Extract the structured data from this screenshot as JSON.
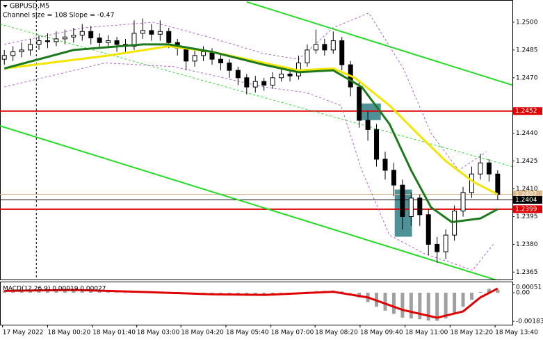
{
  "chart_data": {
    "type": "candlestick",
    "title": "GBPUSD,M5",
    "subtitle": "Channel size = 108 Slope = -0.47",
    "xlim": [
      -0.5,
      58.7
    ],
    "xticks": [
      {
        "value": -0.2,
        "label": "17 May 2022"
      },
      {
        "value": 5,
        "label": "18 May 00:20"
      },
      {
        "value": 10.2,
        "label": "18 May 01:40"
      },
      {
        "value": 15.3,
        "label": "18 May 03:00"
      },
      {
        "value": 20.4,
        "label": "18 May 04:20"
      },
      {
        "value": 25.6,
        "label": "18 May 05:40"
      },
      {
        "value": 30.8,
        "label": "18 May 07:00"
      },
      {
        "value": 35.9,
        "label": "18 May 08:20"
      },
      {
        "value": 41.1,
        "label": "18 May 09:40"
      },
      {
        "value": 46.3,
        "label": "18 May 11:00"
      },
      {
        "value": 51.5,
        "label": "18 May 12:20"
      },
      {
        "value": 56.7,
        "label": "18 May 13:40"
      }
    ],
    "ylim": [
      1.2361,
      1.2512
    ],
    "yticks": [
      {
        "value": 1.25,
        "label": "1.2500"
      },
      1.2485,
      {
        "value": 1.247,
        "label": "1.2470"
      },
      {
        "value": 1.244,
        "label": "1.2440"
      },
      1.2425,
      {
        "value": 1.241,
        "label": "1.2410"
      },
      1.2395,
      {
        "value": 1.238,
        "label": "1.2380"
      },
      1.2365
    ],
    "up_color": "#ffffff",
    "down_color": "#000000",
    "open": [
      1.248,
      1.2482,
      1.2484,
      1.2485,
      1.2488,
      1.249,
      1.24895,
      1.2491,
      1.2492,
      1.2493,
      1.2495,
      1.24915,
      1.2489,
      1.249,
      1.2488,
      1.2487,
      1.2494,
      1.24955,
      1.24935,
      1.2495,
      1.2489,
      1.2486,
      1.2479,
      1.2482,
      1.2484,
      1.248,
      1.2478,
      1.2474,
      1.247,
      1.2465,
      1.2468,
      1.2466,
      1.247,
      1.2472,
      1.2471,
      1.2478,
      1.2485,
      1.2488,
      1.2485,
      1.249,
      1.2477,
      1.2465,
      1.2447,
      1.2442,
      1.2426,
      1.242,
      1.2412,
      1.2395,
      1.2405,
      1.2396,
      1.238,
      1.2376,
      1.2385,
      1.2398,
      1.2408,
      1.2418,
      1.2424,
      1.2418
    ],
    "high": [
      1.2485,
      1.2487,
      1.2489,
      1.2491,
      1.2493,
      1.2494,
      1.2495,
      1.2496,
      1.2497,
      1.2499,
      1.2498,
      1.2494,
      1.2493,
      1.2492,
      1.2491,
      1.2501,
      1.2502,
      1.2499,
      1.2501,
      1.2497,
      1.2491,
      1.2487,
      1.2485,
      1.2487,
      1.2486,
      1.2483,
      1.248,
      1.2476,
      1.2472,
      1.2471,
      1.247,
      1.2473,
      1.2475,
      1.2475,
      1.2482,
      1.2488,
      1.2496,
      1.2491,
      1.2495,
      1.2492,
      1.2479,
      1.2468,
      1.2452,
      1.2445,
      1.243,
      1.2424,
      1.2415,
      1.2408,
      1.2407,
      1.2399,
      1.2384,
      1.2388,
      1.2401,
      1.2411,
      1.2422,
      1.2429,
      1.2426,
      1.242
    ],
    "low": [
      1.2477,
      1.2479,
      1.2481,
      1.2482,
      1.2485,
      1.2486,
      1.2487,
      1.2488,
      1.2489,
      1.249,
      1.2488,
      1.2486,
      1.2486,
      1.2484,
      1.2484,
      1.2485,
      1.2491,
      1.249,
      1.249,
      1.2486,
      1.2482,
      1.2474,
      1.2476,
      1.2479,
      1.2477,
      1.2474,
      1.247,
      1.2466,
      1.2461,
      1.2462,
      1.2463,
      1.2464,
      1.2468,
      1.2468,
      1.2469,
      1.2476,
      1.2483,
      1.2482,
      1.2483,
      1.2474,
      1.246,
      1.2443,
      1.2436,
      1.2422,
      1.2415,
      1.2406,
      1.2388,
      1.239,
      1.239,
      1.2374,
      1.237,
      1.2372,
      1.2382,
      1.2395,
      1.2405,
      1.2415,
      1.2414,
      1.2404
    ],
    "close": [
      1.2482,
      1.2484,
      1.2485,
      1.2488,
      1.249,
      1.24895,
      1.2491,
      1.2492,
      1.2493,
      1.2495,
      1.24915,
      1.2489,
      1.249,
      1.2488,
      1.2487,
      1.2494,
      1.24955,
      1.24935,
      1.2495,
      1.2489,
      1.2486,
      1.2479,
      1.2482,
      1.2484,
      1.248,
      1.2478,
      1.2474,
      1.247,
      1.2465,
      1.2468,
      1.2466,
      1.247,
      1.2472,
      1.2471,
      1.2478,
      1.2485,
      1.2488,
      1.2485,
      1.249,
      1.2477,
      1.2465,
      1.2447,
      1.2442,
      1.2426,
      1.242,
      1.2412,
      1.2395,
      1.2405,
      1.2396,
      1.238,
      1.2376,
      1.2385,
      1.2398,
      1.2408,
      1.2418,
      1.2424,
      1.2418,
      1.2407
    ],
    "series": [
      {
        "color": "#f2e600",
        "style": "solid",
        "x": [
          0,
          12,
          19,
          24,
          30,
          34,
          38,
          40.5,
          44.5,
          47.7,
          51,
          54.1,
          57
        ],
        "values": [
          1.2475,
          1.2482,
          1.2487,
          1.2484,
          1.2478,
          1.2474,
          1.2475,
          1.247,
          1.2455,
          1.244,
          1.2425,
          1.2414,
          1.2407
        ]
      },
      {
        "color": "#1c7a1c",
        "style": "solid",
        "x": [
          0,
          8,
          16,
          19,
          24,
          30,
          34,
          38,
          41.3,
          44.5,
          47,
          49.3,
          51.7,
          55,
          57
        ],
        "values": [
          1.2475,
          1.2485,
          1.2488,
          1.2488,
          1.2484,
          1.2477,
          1.2473,
          1.2474,
          1.2465,
          1.2445,
          1.242,
          1.24,
          1.2392,
          1.2394,
          1.2399
        ]
      },
      {
        "color": "#b060d0",
        "style": "dashed",
        "x": [
          0,
          9.2,
          17.2,
          23.6,
          30,
          34,
          38,
          42.1,
          46.1,
          49.3,
          52.5,
          55.7
        ],
        "values": [
          1.2488,
          1.2497,
          1.25,
          1.2492,
          1.2483,
          1.248,
          1.2497,
          1.2505,
          1.2475,
          1.244,
          1.242,
          1.243
        ]
      },
      {
        "color": "#b060d0",
        "style": "dashed",
        "x": [
          0,
          11.6,
          19.6,
          30,
          34.9,
          38.9,
          41.3,
          44.5,
          48.5,
          51.7,
          54.1,
          56.5
        ],
        "values": [
          1.2465,
          1.2478,
          1.2476,
          1.2465,
          1.2462,
          1.2455,
          1.242,
          1.2385,
          1.2375,
          1.237,
          1.2366,
          1.238
        ]
      }
    ],
    "channels": [
      {
        "color": "#22dd22",
        "style": "solid",
        "x": [
          28,
          58.7
        ],
        "values": [
          1.2511,
          1.2466
        ]
      },
      {
        "color": "#22dd22",
        "style": "solid",
        "x": [
          -0.5,
          57.3
        ],
        "values": [
          1.2444,
          1.236
        ]
      },
      {
        "color": "#22dd22",
        "style": "dashed",
        "x": [
          -0.5,
          58.7
        ],
        "values": [
          1.2499,
          1.2422
        ]
      }
    ],
    "levels": [
      {
        "value": 1.2452,
        "color": "#e00000",
        "text_color": "#ffffff"
      },
      {
        "value": 1.2407,
        "color": "#d9b98a",
        "text_color": "#ffffff"
      },
      {
        "value": 1.2404,
        "color": "#000000",
        "text_color": "#ffffff"
      },
      {
        "value": 1.2399,
        "color": "#e00000",
        "text_color": "#ffffff"
      }
    ],
    "zones": [
      {
        "color": "#4e9196",
        "x": [
          40.9,
          43.5
        ],
        "values": [
          1.24561,
          1.24471
        ]
      },
      {
        "color": "#4e9196",
        "x": [
          45.1,
          47.1
        ],
        "values": [
          1.24096,
          1.23841
        ]
      }
    ],
    "separator_x": 3.7,
    "macd": {
      "label": "MACD(12,26,9) 0.00019 0.00027",
      "ylim": [
        -0.00205,
        0.000714
      ],
      "yticks": [
        0.00051,
        {
          "value": 0,
          "label": "0.00"
        },
        -0.00183
      ],
      "hist_color": "#a0a0a0",
      "histogram": [
        0.0001,
        0.00015,
        0.00018,
        0.0002,
        0.00022,
        0.00022,
        0.0002,
        0.00018,
        0.00016,
        0.00015,
        0.0001,
        6e-05,
        4e-05,
        2e-05,
        0,
        4e-05,
        8e-05,
        8e-05,
        7e-05,
        2e-05,
        -4e-05,
        -0.0001,
        -0.00012,
        -0.0001,
        -0.00012,
        -0.00014,
        -0.00016,
        -0.00018,
        -0.0002,
        -0.00018,
        -0.00016,
        -0.00012,
        -8e-05,
        -5e-05,
        0,
        6e-05,
        0.0001,
        0.00012,
        0.00014,
        8e-05,
        -4e-05,
        -0.0003,
        -0.0006,
        -0.0009,
        -0.00115,
        -0.00135,
        -0.0016,
        -0.00165,
        -0.0017,
        -0.00178,
        -0.0018,
        -0.00165,
        -0.0013,
        -0.0009,
        -0.00045,
        5e-05,
        0.00025,
        0.00019
      ],
      "signal": {
        "color": "#e00000",
        "x": [
          0,
          8,
          16,
          24,
          30,
          38,
          42,
          46,
          50,
          53,
          55,
          57
        ],
        "values": [
          0.00012,
          0.00018,
          5e-05,
          -0.0001,
          -0.00014,
          6e-05,
          -0.0003,
          -0.0011,
          -0.0016,
          -0.0012,
          -0.0003,
          0.00027
        ]
      }
    }
  }
}
